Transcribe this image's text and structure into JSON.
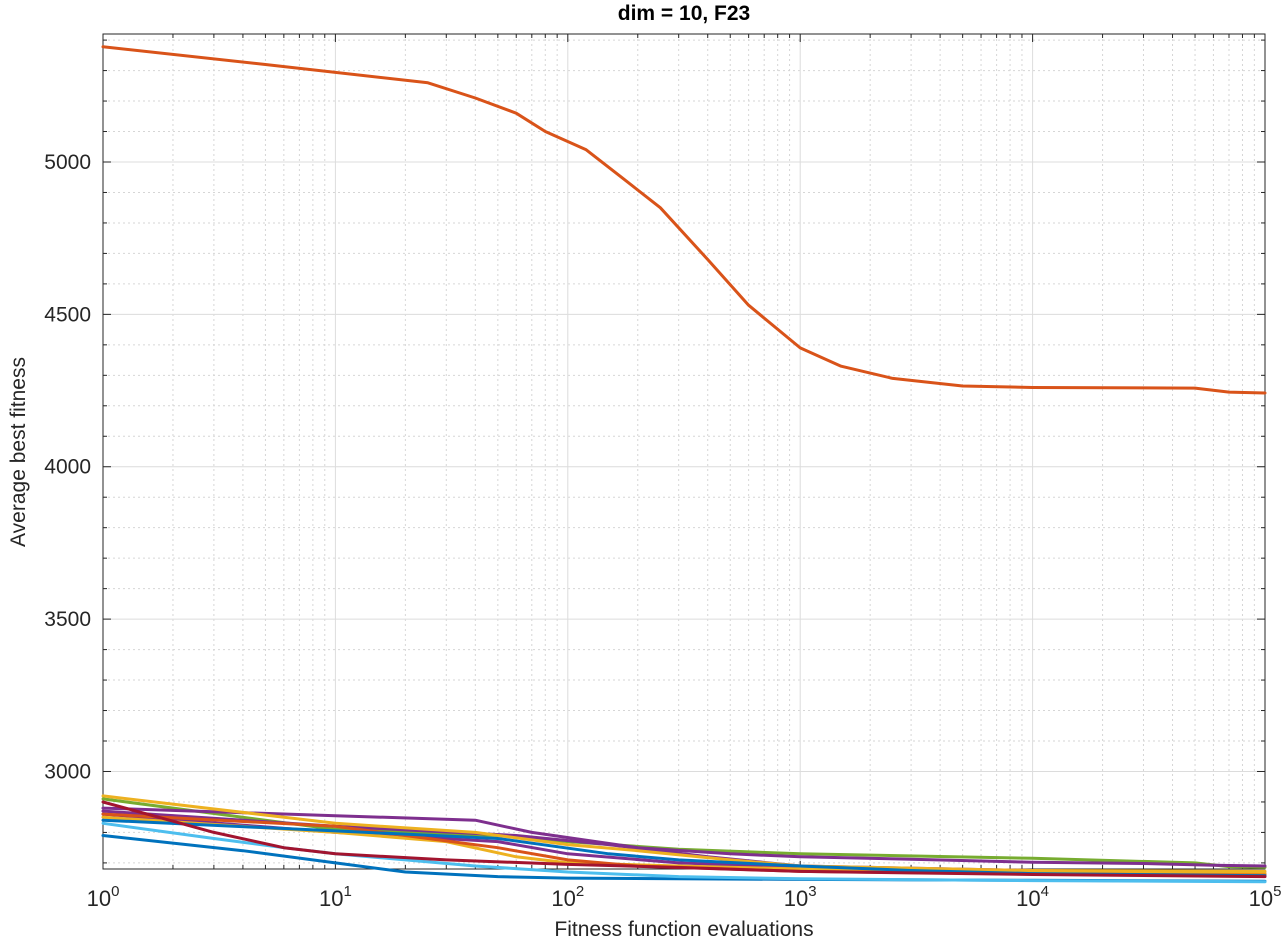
{
  "chart_data": {
    "type": "line",
    "title": "dim = 10,  F23",
    "xlabel": "Fitness function evaluations",
    "ylabel": "Average best fitness",
    "xscale": "log",
    "xlim": [
      1,
      100000
    ],
    "ylim": [
      2680,
      5420
    ],
    "grid": true,
    "minor_grid": true,
    "x_ticks": [
      {
        "value": 1,
        "base": "10",
        "exp": "0"
      },
      {
        "value": 10,
        "base": "10",
        "exp": "1"
      },
      {
        "value": 100,
        "base": "10",
        "exp": "2"
      },
      {
        "value": 1000,
        "base": "10",
        "exp": "3"
      },
      {
        "value": 10000,
        "base": "10",
        "exp": "4"
      },
      {
        "value": 100000,
        "base": "10",
        "exp": "5"
      }
    ],
    "y_ticks": [
      3000,
      3500,
      4000,
      4500,
      5000
    ],
    "series": [
      {
        "color": "#D95319",
        "points": [
          [
            1,
            5378
          ],
          [
            5,
            5320
          ],
          [
            25,
            5260
          ],
          [
            40,
            5210
          ],
          [
            60,
            5160
          ],
          [
            80,
            5100
          ],
          [
            120,
            5040
          ],
          [
            170,
            4950
          ],
          [
            250,
            4850
          ],
          [
            400,
            4680
          ],
          [
            600,
            4530
          ],
          [
            1000,
            4390
          ],
          [
            1500,
            4330
          ],
          [
            2500,
            4290
          ],
          [
            5000,
            4265
          ],
          [
            10000,
            4260
          ],
          [
            50000,
            4258
          ],
          [
            70000,
            4245
          ],
          [
            100000,
            4242
          ]
        ]
      },
      {
        "color": "#77AC30",
        "points": [
          [
            1,
            2910
          ],
          [
            10,
            2810
          ],
          [
            50,
            2790
          ],
          [
            100,
            2770
          ],
          [
            300,
            2745
          ],
          [
            1000,
            2730
          ],
          [
            10000,
            2715
          ],
          [
            50000,
            2700
          ],
          [
            70000,
            2688
          ],
          [
            100000,
            2686
          ]
        ]
      },
      {
        "color": "#7E2F8E",
        "points": [
          [
            1,
            2880
          ],
          [
            10,
            2855
          ],
          [
            40,
            2840
          ],
          [
            70,
            2800
          ],
          [
            200,
            2750
          ],
          [
            500,
            2730
          ],
          [
            1000,
            2720
          ],
          [
            3000,
            2712
          ],
          [
            10000,
            2702
          ],
          [
            30000,
            2698
          ],
          [
            60000,
            2692
          ],
          [
            100000,
            2690
          ]
        ]
      },
      {
        "color": "#7E2F8E",
        "points": [
          [
            1,
            2870
          ],
          [
            10,
            2820
          ],
          [
            60,
            2790
          ],
          [
            150,
            2760
          ],
          [
            400,
            2720
          ],
          [
            1000,
            2690
          ],
          [
            10000,
            2675
          ],
          [
            100000,
            2665
          ]
        ]
      },
      {
        "color": "#7E2F8E",
        "points": [
          [
            1,
            2860
          ],
          [
            10,
            2800
          ],
          [
            50,
            2770
          ],
          [
            100,
            2730
          ],
          [
            300,
            2700
          ],
          [
            1000,
            2685
          ],
          [
            10000,
            2672
          ],
          [
            100000,
            2662
          ]
        ]
      },
      {
        "color": "#EDB120",
        "points": [
          [
            1,
            2920
          ],
          [
            10,
            2830
          ],
          [
            40,
            2800
          ],
          [
            100,
            2760
          ],
          [
            200,
            2740
          ],
          [
            500,
            2710
          ],
          [
            1000,
            2690
          ],
          [
            10000,
            2675
          ],
          [
            100000,
            2672
          ]
        ]
      },
      {
        "color": "#EDB120",
        "points": [
          [
            1,
            2850
          ],
          [
            10,
            2800
          ],
          [
            30,
            2770
          ],
          [
            60,
            2720
          ],
          [
            100,
            2700
          ],
          [
            300,
            2690
          ],
          [
            1000,
            2680
          ],
          [
            10000,
            2670
          ],
          [
            100000,
            2665
          ]
        ]
      },
      {
        "color": "#D95319",
        "points": [
          [
            1,
            2860
          ],
          [
            10,
            2820
          ],
          [
            50,
            2750
          ],
          [
            100,
            2710
          ],
          [
            200,
            2690
          ],
          [
            1000,
            2672
          ],
          [
            10000,
            2664
          ],
          [
            100000,
            2660
          ]
        ]
      },
      {
        "color": "#0072BD",
        "points": [
          [
            1,
            2790
          ],
          [
            4,
            2740
          ],
          [
            10,
            2700
          ],
          [
            20,
            2670
          ],
          [
            50,
            2655
          ],
          [
            100,
            2650
          ],
          [
            1000,
            2646
          ],
          [
            10000,
            2643
          ],
          [
            100000,
            2640
          ]
        ]
      },
      {
        "color": "#0072BD",
        "points": [
          [
            1,
            2840
          ],
          [
            10,
            2805
          ],
          [
            50,
            2780
          ],
          [
            150,
            2730
          ],
          [
            300,
            2710
          ],
          [
            1000,
            2690
          ],
          [
            3000,
            2675
          ],
          [
            10000,
            2665
          ],
          [
            100000,
            2658
          ]
        ]
      },
      {
        "color": "#4DBEEE",
        "points": [
          [
            1,
            2830
          ],
          [
            3,
            2780
          ],
          [
            6,
            2750
          ],
          [
            10,
            2730
          ],
          [
            20,
            2710
          ],
          [
            40,
            2690
          ],
          [
            100,
            2670
          ],
          [
            300,
            2655
          ],
          [
            1000,
            2648
          ],
          [
            10000,
            2642
          ],
          [
            100000,
            2638
          ]
        ]
      },
      {
        "color": "#A2142F",
        "points": [
          [
            1,
            2900
          ],
          [
            3,
            2800
          ],
          [
            6,
            2750
          ],
          [
            10,
            2730
          ],
          [
            30,
            2710
          ],
          [
            100,
            2695
          ],
          [
            300,
            2685
          ],
          [
            1000,
            2672
          ],
          [
            10000,
            2662
          ],
          [
            100000,
            2655
          ]
        ]
      }
    ]
  }
}
